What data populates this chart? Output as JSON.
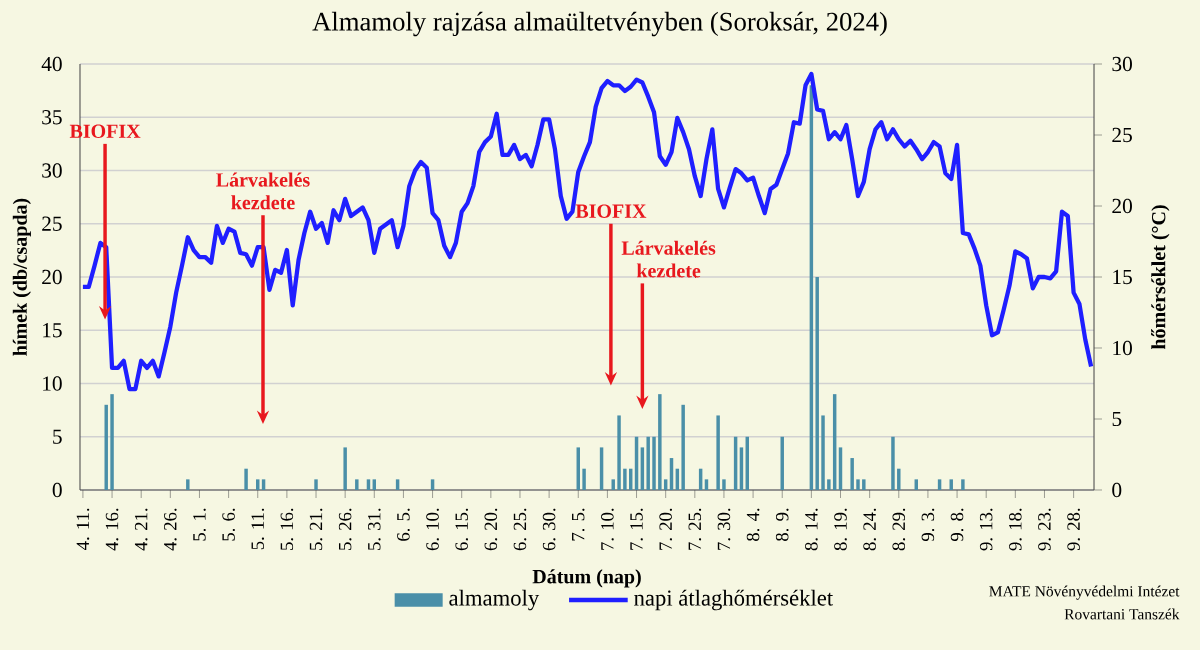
{
  "chart_data": {
    "type": "bar",
    "title": "Almamoly rajzása almaültetvényben (Soroksár, 2024)",
    "xlabel": "Dátum (nap)",
    "ylabel": "hímek (db/csapda)",
    "y2label": "hőmérséklet (°C)",
    "categories": [
      "4. 11.",
      null,
      null,
      null,
      null,
      "4. 16.",
      null,
      null,
      null,
      null,
      "4. 21.",
      null,
      null,
      null,
      null,
      "4. 26.",
      null,
      null,
      null,
      null,
      "5. 1.",
      null,
      null,
      null,
      null,
      "5. 6.",
      null,
      null,
      null,
      null,
      "5. 11.",
      null,
      null,
      null,
      null,
      "5. 16.",
      null,
      null,
      null,
      null,
      "5. 21.",
      null,
      null,
      null,
      null,
      "5. 26.",
      null,
      null,
      null,
      null,
      "5. 31.",
      null,
      null,
      null,
      null,
      "6. 5.",
      null,
      null,
      null,
      null,
      "6. 10.",
      null,
      null,
      null,
      null,
      "6. 15.",
      null,
      null,
      null,
      null,
      "6. 20.",
      null,
      null,
      null,
      null,
      "6. 25.",
      null,
      null,
      null,
      null,
      "6. 30.",
      null,
      null,
      null,
      null,
      "7. 5.",
      null,
      null,
      null,
      null,
      "7. 10.",
      null,
      null,
      null,
      null,
      "7. 15.",
      null,
      null,
      null,
      null,
      "7. 20.",
      null,
      null,
      null,
      null,
      "7. 25.",
      null,
      null,
      null,
      null,
      "7. 30.",
      null,
      null,
      null,
      null,
      "8. 4.",
      null,
      null,
      null,
      null,
      "8. 9.",
      null,
      null,
      null,
      null,
      "8. 14.",
      null,
      null,
      null,
      null,
      "8. 19.",
      null,
      null,
      null,
      null,
      "8. 24.",
      null,
      null,
      null,
      null,
      "8. 29.",
      null,
      null,
      null,
      null,
      "9. 3.",
      null,
      null,
      null,
      null,
      "9. 8.",
      null,
      null,
      null,
      null,
      "9. 13.",
      null,
      null,
      null,
      null,
      "9. 18.",
      null,
      null,
      null,
      null,
      "9. 23.",
      null,
      null,
      null,
      null,
      "9. 28.",
      null,
      null,
      null
    ],
    "series": [
      {
        "name": "almamoly",
        "color": "#4a8fa8",
        "values": [
          0,
          0,
          0,
          0,
          8,
          9,
          0,
          0,
          0,
          0,
          0,
          0,
          0,
          0,
          0,
          0,
          0,
          0,
          1,
          0,
          0,
          0,
          0,
          0,
          0,
          0,
          0,
          0,
          2,
          0,
          1,
          1,
          0,
          0,
          0,
          0,
          0,
          0,
          0,
          0,
          1,
          0,
          0,
          0,
          0,
          4,
          0,
          1,
          0,
          1,
          1,
          0,
          0,
          0,
          1,
          0,
          0,
          0,
          0,
          0,
          1,
          0,
          0,
          0,
          0,
          0,
          0,
          0,
          0,
          0,
          0,
          0,
          0,
          0,
          0,
          0,
          0,
          0,
          0,
          0,
          0,
          0,
          0,
          0,
          0,
          4,
          2,
          0,
          0,
          4,
          0,
          1,
          7,
          2,
          2,
          5,
          4,
          5,
          5,
          9,
          1,
          3,
          2,
          8,
          0,
          0,
          2,
          1,
          0,
          7,
          1,
          0,
          5,
          4,
          5,
          0,
          0,
          0,
          0,
          0,
          5,
          0,
          0,
          0,
          0,
          38,
          20,
          7,
          1,
          9,
          4,
          0,
          3,
          1,
          1,
          0,
          0,
          0,
          0,
          5,
          2,
          0,
          0,
          1,
          0,
          0,
          0,
          1,
          0,
          1,
          0,
          1,
          0,
          0,
          0,
          0,
          0,
          0,
          0,
          0,
          0,
          0,
          0,
          0,
          0,
          0,
          0,
          0,
          0,
          0,
          0,
          0,
          0,
          0
        ]
      },
      {
        "name": "napi átlaghőmérséklet",
        "type": "line",
        "axis": "y2",
        "color": "#1f1fff",
        "values": [
          14.3,
          14.3,
          15.8,
          17.4,
          17.1,
          8.6,
          8.6,
          9.1,
          7.1,
          7.1,
          9.1,
          8.6,
          9.1,
          8.0,
          9.7,
          11.5,
          13.9,
          15.8,
          17.8,
          16.9,
          16.4,
          16.4,
          16.0,
          18.6,
          17.4,
          18.4,
          18.2,
          16.7,
          16.6,
          15.8,
          17.1,
          17.1,
          14.1,
          15.5,
          15.3,
          16.9,
          13.0,
          16.2,
          18.1,
          19.6,
          18.4,
          18.8,
          17.4,
          19.7,
          19.0,
          20.5,
          19.3,
          19.6,
          19.9,
          19.0,
          16.7,
          18.4,
          18.7,
          19.0,
          17.1,
          18.6,
          21.4,
          22.5,
          23.1,
          22.7,
          19.5,
          19.0,
          17.2,
          16.4,
          17.4,
          19.6,
          20.2,
          21.4,
          23.8,
          24.5,
          24.9,
          26.5,
          23.6,
          23.6,
          24.3,
          23.3,
          23.6,
          22.8,
          24.3,
          26.1,
          26.1,
          24.0,
          20.7,
          19.1,
          19.6,
          22.4,
          23.5,
          24.5,
          27.0,
          28.3,
          28.8,
          28.5,
          28.5,
          28.1,
          28.4,
          28.9,
          28.7,
          27.7,
          26.6,
          23.5,
          22.9,
          23.8,
          26.2,
          25.2,
          24.0,
          22.1,
          20.7,
          23.3,
          25.4,
          21.2,
          19.9,
          21.3,
          22.6,
          22.3,
          21.8,
          22.0,
          20.7,
          19.5,
          21.2,
          21.5,
          22.6,
          23.7,
          25.9,
          25.8,
          28.5,
          29.3,
          26.8,
          26.7,
          24.7,
          25.2,
          24.7,
          25.7,
          23.3,
          20.7,
          21.7,
          24.0,
          25.4,
          25.9,
          24.7,
          25.4,
          24.7,
          24.2,
          24.6,
          24.0,
          23.3,
          23.8,
          24.5,
          24.2,
          22.3,
          21.9,
          24.3,
          18.1,
          18.0,
          17.0,
          15.8,
          13.0,
          10.9,
          11.1,
          12.7,
          14.4,
          16.8,
          16.6,
          16.3,
          14.2,
          15.0,
          15.0,
          14.9,
          15.4,
          19.6,
          19.3,
          13.9,
          13.1,
          10.6,
          8.7
        ]
      }
    ],
    "ylim": [
      0,
      40
    ],
    "yticks": [
      0,
      5,
      10,
      15,
      20,
      25,
      30,
      35,
      40
    ],
    "y2lim": [
      0,
      30
    ],
    "y2ticks": [
      0,
      5,
      10,
      15,
      20,
      25,
      30
    ],
    "grid": "y",
    "legend": "bottom",
    "annotations": [
      {
        "text": "BIOFIX",
        "x": "4. 16.",
        "y": 16
      },
      "Lárvakelés kezdete",
      "BIOFIX",
      "Lárvakelés kezdete",
      "MATE Növényvédelmi Intézet",
      "Rovartani Tanszék"
    ]
  }
}
